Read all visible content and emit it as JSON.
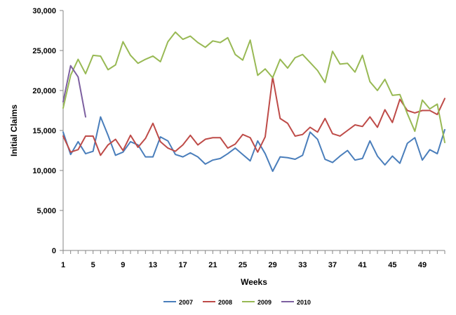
{
  "chart_data": {
    "type": "line",
    "title": "",
    "xlabel": "Weeks",
    "ylabel": "Initial Claims",
    "xlim": [
      1,
      52
    ],
    "ylim": [
      0,
      30000
    ],
    "x_ticks": [
      1,
      5,
      9,
      13,
      17,
      21,
      25,
      29,
      33,
      37,
      41,
      45,
      49
    ],
    "x_tick_labels": [
      "1",
      "5",
      "9",
      "13",
      "17",
      "21",
      "25",
      "29",
      "33",
      "37",
      "41",
      "45",
      "49"
    ],
    "y_ticks": [
      0,
      5000,
      10000,
      15000,
      20000,
      25000,
      30000
    ],
    "y_tick_labels": [
      "0",
      "5,000",
      "10,000",
      "15,000",
      "20,000",
      "25,000",
      "30,000"
    ],
    "grid": {
      "x": false,
      "y": false
    },
    "legend": {
      "placement": "bottom-center"
    },
    "series": [
      {
        "name": "2007",
        "color": "#4a7ebb",
        "values": [
          14800,
          12000,
          13600,
          12100,
          12400,
          16700,
          14400,
          11900,
          12300,
          13600,
          13200,
          11700,
          11700,
          14200,
          13700,
          12000,
          11700,
          12200,
          11700,
          10800,
          11300,
          11500,
          12100,
          12800,
          12000,
          11200,
          13700,
          12100,
          9900,
          11700,
          11600,
          11400,
          11900,
          14800,
          13900,
          11400,
          11000,
          11800,
          12500,
          11300,
          11500,
          13700,
          11800,
          10700,
          11800,
          10900,
          13400,
          14100,
          11300,
          12600,
          12100,
          15100
        ]
      },
      {
        "name": "2008",
        "color": "#be4b48",
        "values": [
          14300,
          12300,
          12600,
          14300,
          14300,
          11900,
          13200,
          13900,
          12500,
          14400,
          12900,
          14000,
          15900,
          13600,
          12800,
          12400,
          13200,
          14400,
          13200,
          13900,
          14100,
          14100,
          12800,
          13300,
          14500,
          14100,
          12300,
          14200,
          21700,
          16500,
          15900,
          14300,
          14500,
          15400,
          14800,
          16500,
          14600,
          14300,
          15000,
          15700,
          15500,
          16700,
          15400,
          17600,
          16000,
          18900,
          17500,
          17200,
          17500,
          17500,
          17000,
          19000
        ]
      },
      {
        "name": "2009",
        "color": "#98b954",
        "values": [
          17800,
          21900,
          23900,
          22100,
          24400,
          24300,
          22600,
          23200,
          26100,
          24400,
          23400,
          23900,
          24300,
          23600,
          26100,
          27300,
          26400,
          26800,
          26000,
          25400,
          26200,
          26000,
          26600,
          24500,
          23800,
          26300,
          21900,
          22700,
          21600,
          23900,
          22800,
          24100,
          24500,
          23500,
          22500,
          21000,
          24900,
          23300,
          23400,
          22300,
          24400,
          21100,
          20000,
          21400,
          19400,
          19500,
          17100,
          14900,
          18800,
          17700,
          18300,
          13500
        ]
      },
      {
        "name": "2010",
        "color": "#7d60a0",
        "values": [
          18600,
          23100,
          21700,
          16700
        ]
      }
    ]
  }
}
